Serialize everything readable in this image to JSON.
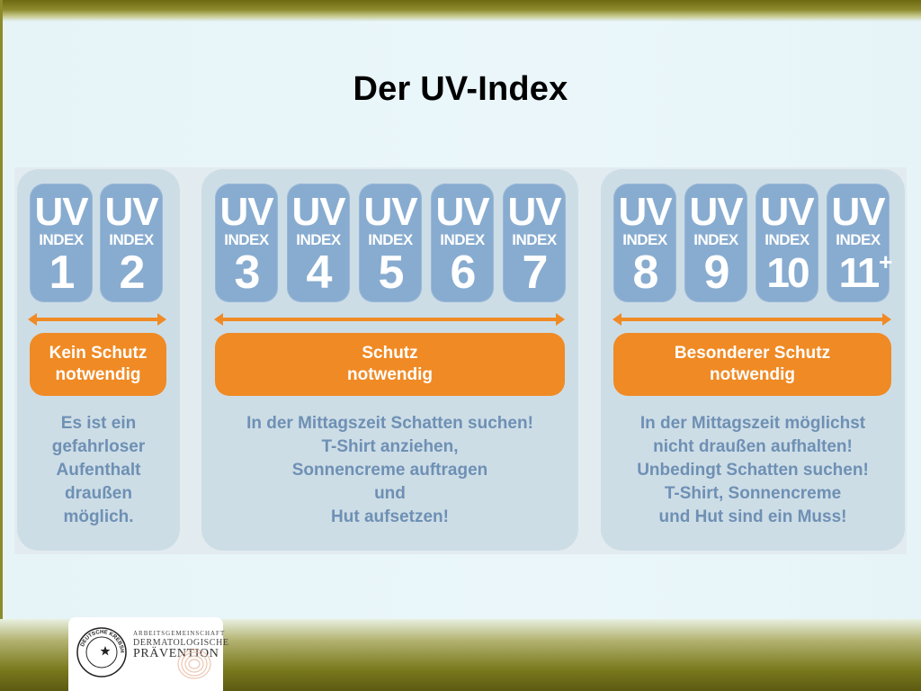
{
  "slide": {
    "title": "Der UV-Index"
  },
  "groups": [
    {
      "tiles": [
        {
          "uv": "UV",
          "label": "INDEX",
          "num": "1"
        },
        {
          "uv": "UV",
          "label": "INDEX",
          "num": "2"
        }
      ],
      "badge_line1": "Kein Schutz",
      "badge_line2": "notwendig",
      "desc": [
        "Es ist ein",
        "gefahrloser",
        "Aufenthalt",
        "draußen",
        "möglich."
      ]
    },
    {
      "tiles": [
        {
          "uv": "UV",
          "label": "INDEX",
          "num": "3"
        },
        {
          "uv": "UV",
          "label": "INDEX",
          "num": "4"
        },
        {
          "uv": "UV",
          "label": "INDEX",
          "num": "5"
        },
        {
          "uv": "UV",
          "label": "INDEX",
          "num": "6"
        },
        {
          "uv": "UV",
          "label": "INDEX",
          "num": "7"
        }
      ],
      "badge_line1": "Schutz",
      "badge_line2": "notwendig",
      "desc": [
        "In der Mittagszeit Schatten suchen!",
        "T-Shirt anziehen,",
        "Sonnencreme auftragen",
        "und",
        "Hut aufsetzen!"
      ]
    },
    {
      "tiles": [
        {
          "uv": "UV",
          "label": "INDEX",
          "num": "8"
        },
        {
          "uv": "UV",
          "label": "INDEX",
          "num": "9"
        },
        {
          "uv": "UV",
          "label": "INDEX",
          "num": "10"
        },
        {
          "uv": "UV",
          "label": "INDEX",
          "num": "11",
          "sup": "+"
        }
      ],
      "badge_line1": "Besonderer Schutz",
      "badge_line2": "notwendig",
      "desc": [
        "In der Mittagszeit möglichst",
        "nicht draußen aufhalten!",
        "Unbedingt Schatten suchen!",
        "T-Shirt, Sonnencreme",
        "und Hut sind ein Muss!"
      ]
    }
  ],
  "logo": {
    "seal_text": "DEUTSCHE KREBSHILFE",
    "line1": "ARBEITSGEMEINSCHAFT",
    "line2": "DERMATOLOGISCHE",
    "line3": "PRÄVENTION"
  },
  "colors": {
    "tile": "#88acd0",
    "accent": "#f08a24",
    "text_blue": "#6e90b4",
    "group_bg": "#cddde6"
  }
}
